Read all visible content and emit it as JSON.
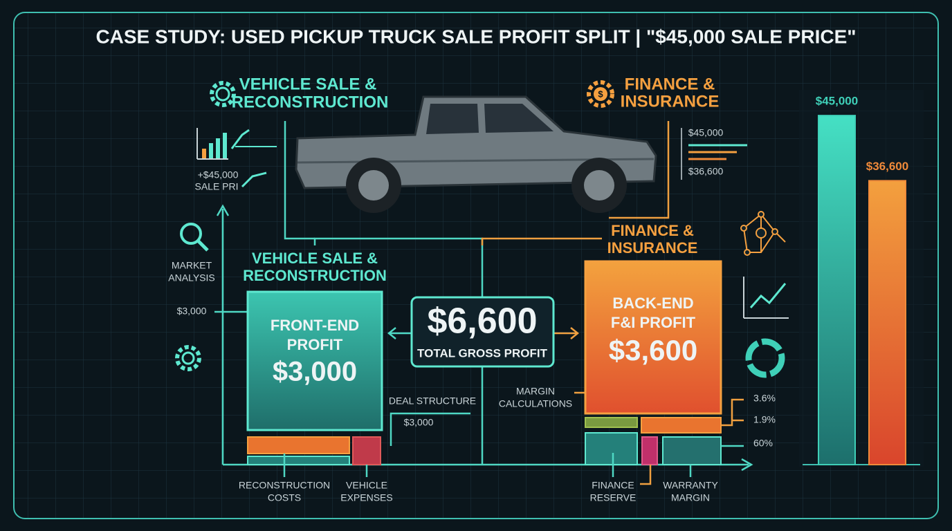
{
  "title": "CASE STUDY: USED PICKUP TRUCK SALE PROFIT SPLIT | \"$45,000 SALE PRICE\"",
  "top_left_heading": [
    "VEHICLE SALE &",
    "RECONSTRUCTION"
  ],
  "top_right_heading": [
    "FINANCE &",
    "INSURANCE"
  ],
  "mini_chart_left": [
    "+$45,000",
    "SALE PRI"
  ],
  "mini_chart_right": [
    "$45,000",
    "$36,600"
  ],
  "left_labels": {
    "market_analysis": [
      "MARKET",
      "ANALYSIS"
    ],
    "amount": "$3,000"
  },
  "front_heading": [
    "VEHICLE SALE &",
    "RECONSTRUCTION"
  ],
  "front_box": {
    "title": [
      "FRONT-END",
      "PROFIT"
    ],
    "amount": "$3,000"
  },
  "center_box": {
    "amount": "$6,600",
    "caption": "TOTAL GROSS PROFIT"
  },
  "back_heading": [
    "FINANCE &",
    "INSURANCE"
  ],
  "back_box": {
    "title": [
      "BACK-END",
      "F&I PROFIT"
    ],
    "amount": "$3,600"
  },
  "deal_structure": {
    "label": "DEAL STRUCTURE",
    "amount": "$3,000"
  },
  "margin_calculations": [
    "MARGIN",
    "CALCULATIONS"
  ],
  "percent_labels": [
    "3.6%",
    "1.9%",
    "60%"
  ],
  "bottom_labels": [
    [
      "RECONSTRUCTION",
      "COSTS"
    ],
    [
      "VEHICLE",
      "EXPENSES"
    ],
    [
      "FINANCE",
      "RESERVE"
    ],
    [
      "WARRANTY",
      "MARGIN"
    ]
  ],
  "comparison_bars": [
    {
      "value": 45000,
      "label": "$45,000",
      "color": "#3fd0b8"
    },
    {
      "value": 36600,
      "label": "$36,600",
      "color": "#f08a3a"
    }
  ]
}
